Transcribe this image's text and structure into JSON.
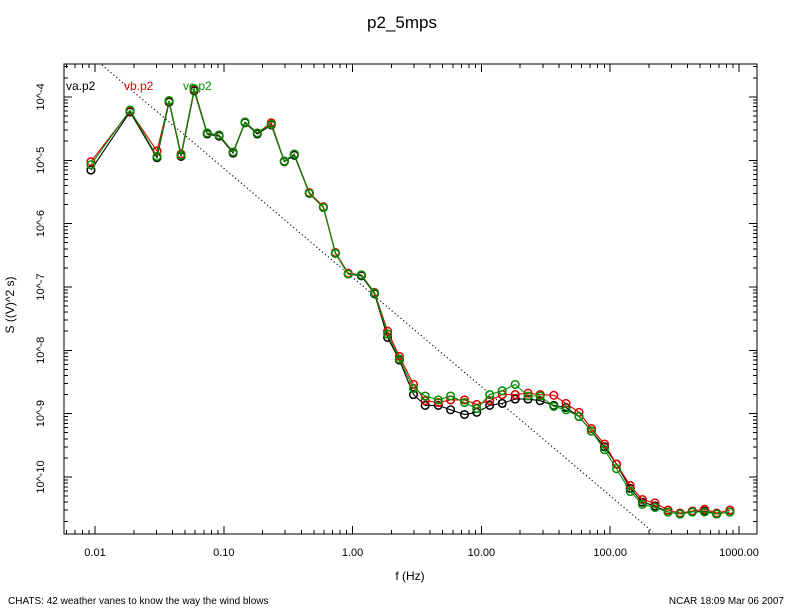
{
  "footer_left": "CHATS: 42 weather vanes to know the way the wind blows",
  "footer_right": "NCAR 18:09 Mar 06 2007",
  "chart_data": {
    "type": "line",
    "scale": "log-log",
    "title": "p2_5mps",
    "xlabel": "f (Hz)",
    "ylabel": "S ((V)^2 s)",
    "grid": "off",
    "marker": "open-circle",
    "xlim_log10": [
      -2.2407,
      3.14
    ],
    "ylim_log10": [
      -10.9,
      -3.48
    ],
    "xticks": {
      "major": [
        0.01,
        0.1,
        1,
        10,
        100,
        1000
      ],
      "labels": [
        "0.01",
        "0.10",
        "1.00",
        "10.00",
        "100.00",
        "1000.00"
      ],
      "minor_rule": "log-2-to-9"
    },
    "yticks": {
      "major_exponents": [
        -4,
        -5,
        -6,
        -7,
        -8,
        -9,
        -10
      ],
      "labels": [
        "10^-4",
        "10^-5",
        "10^-6",
        "10^-7",
        "10^-8",
        "10^-9",
        "10^-10"
      ],
      "minor_rule": "log-2-to-9"
    },
    "x": [
      0.0093,
      0.0187,
      0.0303,
      0.0376,
      0.0466,
      0.0589,
      0.0743,
      0.0919,
      0.118,
      0.146,
      0.182,
      0.234,
      0.295,
      0.353,
      0.461,
      0.593,
      0.735,
      0.925,
      1.17,
      1.48,
      1.87,
      2.31,
      2.97,
      3.66,
      4.63,
      5.77,
      7.4,
      9.2,
      11.6,
      14.5,
      18.3,
      23.0,
      28.6,
      36.5,
      45.4,
      57.3,
      71.5,
      90.3,
      112,
      143,
      178,
      223,
      281,
      349,
      434,
      540,
      671,
      850
    ],
    "series": [
      {
        "name": "va.p2",
        "color": "#000000",
        "values": [
          7e-06,
          5.8e-05,
          1.1e-05,
          8.3e-05,
          1.15e-05,
          0.000125,
          2.6e-05,
          2.4e-05,
          1.3e-05,
          3.9e-05,
          2.6e-05,
          3.6e-05,
          9.5e-06,
          1.2e-05,
          3e-06,
          1.8e-06,
          3.4e-07,
          1.6e-07,
          1.5e-07,
          7.8e-08,
          1.6e-08,
          7e-09,
          2e-09,
          1.35e-09,
          1.35e-09,
          1.15e-09,
          9.7e-10,
          1.05e-09,
          1.35e-09,
          1.45e-09,
          1.7e-09,
          1.7e-09,
          1.6e-09,
          1.35e-09,
          1.25e-09,
          9e-10,
          5.3e-10,
          3e-10,
          1.6e-10,
          6.6e-11,
          4e-11,
          3.5e-11,
          2.8e-11,
          2.6e-11,
          2.8e-11,
          2.9e-11,
          2.6e-11,
          2.8e-11
        ]
      },
      {
        "name": "vb.p2",
        "color": "#dd0000",
        "values": [
          9.5e-06,
          6e-05,
          1.4e-05,
          8.6e-05,
          1.25e-05,
          0.00013,
          2.7e-05,
          2.5e-05,
          1.35e-05,
          4e-05,
          2.7e-05,
          3.9e-05,
          9.7e-06,
          1.25e-05,
          3.1e-06,
          1.85e-06,
          3.5e-07,
          1.65e-07,
          1.55e-07,
          8.2e-08,
          2e-08,
          8e-09,
          2.9e-09,
          1.6e-09,
          1.5e-09,
          1.65e-09,
          1.65e-09,
          1.4e-09,
          1.6e-09,
          2e-09,
          2e-09,
          2.1e-09,
          2e-09,
          1.95e-09,
          1.45e-09,
          1.05e-09,
          5.8e-10,
          3.3e-10,
          1.6e-10,
          7.3e-11,
          4.4e-11,
          3.9e-11,
          3e-11,
          2.7e-11,
          2.9e-11,
          3.1e-11,
          2.7e-11,
          3e-11
        ]
      },
      {
        "name": "vc.p2",
        "color": "#008f00",
        "values": [
          8.5e-06,
          6.2e-05,
          1.15e-05,
          8.8e-05,
          1.2e-05,
          0.000135,
          2.7e-05,
          2.5e-05,
          1.35e-05,
          4e-05,
          2.7e-05,
          3.7e-05,
          9.7e-06,
          1.25e-05,
          3e-06,
          1.8e-06,
          3.4e-07,
          1.6e-07,
          1.55e-07,
          8e-08,
          1.8e-08,
          7.3e-09,
          2.5e-09,
          1.9e-09,
          1.65e-09,
          1.9e-09,
          1.5e-09,
          1.2e-09,
          2e-09,
          2.3e-09,
          2.9e-09,
          1.9e-09,
          1.9e-09,
          1.3e-09,
          1.15e-09,
          9e-10,
          5.3e-10,
          2.7e-10,
          1.35e-10,
          5.9e-11,
          3.7e-11,
          3.3e-11,
          2.8e-11,
          2.6e-11,
          2.8e-11,
          2.8e-11,
          2.6e-11,
          2.8e-11
        ]
      }
    ],
    "reference_line": {
      "style": "dotted",
      "color": "#000000",
      "f": [
        0.0113,
        215
      ],
      "S": [
        0.00032,
        1.35e-11
      ]
    },
    "legend": {
      "position": "top-left-inside",
      "entries": [
        {
          "label": "va.p2",
          "color": "#000000"
        },
        {
          "label": "vb.p2",
          "color": "#dd0000"
        },
        {
          "label": "vc.p2",
          "color": "#008f00"
        }
      ]
    }
  }
}
